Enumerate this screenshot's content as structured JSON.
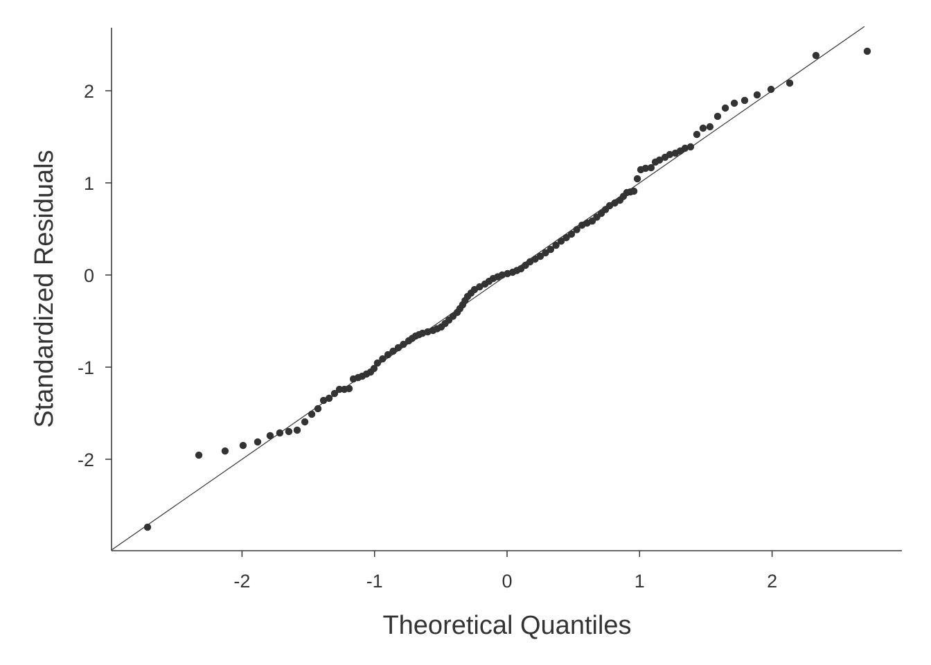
{
  "chart_data": {
    "type": "scatter",
    "title": "",
    "xlabel": "Theoretical Quantiles",
    "ylabel": "Standardized Residuals",
    "xlim": [
      -2.985,
      2.98
    ],
    "ylim": [
      -2.99,
      2.68
    ],
    "xticks": [
      -2,
      -1,
      0,
      1,
      2
    ],
    "yticks": [
      -2,
      -1,
      0,
      1,
      2
    ],
    "xtick_labels": [
      "-2",
      "-1",
      "0",
      "1",
      "2"
    ],
    "ytick_labels": [
      "-2",
      "-1",
      "0",
      "1",
      "2"
    ],
    "grid": false,
    "reference_line": {
      "slope": 1,
      "intercept": 0
    },
    "point_color": "#333333",
    "line_color": "#333333",
    "points": [
      [
        -2.713,
        -2.737
      ],
      [
        -2.326,
        -1.955
      ],
      [
        -2.128,
        -1.91
      ],
      [
        -1.992,
        -1.85
      ],
      [
        -1.882,
        -1.812
      ],
      [
        -1.788,
        -1.744
      ],
      [
        -1.715,
        -1.714
      ],
      [
        -1.647,
        -1.699
      ],
      [
        -1.584,
        -1.684
      ],
      [
        -1.526,
        -1.594
      ],
      [
        -1.474,
        -1.511
      ],
      [
        -1.427,
        -1.451
      ],
      [
        -1.385,
        -1.361
      ],
      [
        -1.343,
        -1.338
      ],
      [
        -1.302,
        -1.286
      ],
      [
        -1.265,
        -1.241
      ],
      [
        -1.228,
        -1.241
      ],
      [
        -1.192,
        -1.233
      ],
      [
        -1.16,
        -1.128
      ],
      [
        -1.124,
        -1.113
      ],
      [
        -1.093,
        -1.098
      ],
      [
        -1.061,
        -1.075
      ],
      [
        -1.03,
        -1.053
      ],
      [
        -1.004,
        -1.015
      ],
      [
        -0.978,
        -0.955
      ],
      [
        -0.939,
        -0.91
      ],
      [
        -0.899,
        -0.865
      ],
      [
        -0.86,
        -0.827
      ],
      [
        -0.821,
        -0.789
      ],
      [
        -0.782,
        -0.752
      ],
      [
        -0.742,
        -0.714
      ],
      [
        -0.716,
        -0.688
      ],
      [
        -0.69,
        -0.662
      ],
      [
        -0.664,
        -0.647
      ],
      [
        -0.638,
        -0.632
      ],
      [
        -0.599,
        -0.617
      ],
      [
        -0.559,
        -0.602
      ],
      [
        -0.528,
        -0.583
      ],
      [
        -0.497,
        -0.564
      ],
      [
        -0.468,
        -0.527
      ],
      [
        -0.439,
        -0.489
      ],
      [
        -0.408,
        -0.448
      ],
      [
        -0.376,
        -0.406
      ],
      [
        -0.356,
        -0.365
      ],
      [
        -0.335,
        -0.323
      ],
      [
        -0.317,
        -0.278
      ],
      [
        -0.298,
        -0.233
      ],
      [
        -0.272,
        -0.196
      ],
      [
        -0.246,
        -0.158
      ],
      [
        -0.207,
        -0.128
      ],
      [
        -0.167,
        -0.098
      ],
      [
        -0.136,
        -0.068
      ],
      [
        -0.105,
        -0.038
      ],
      [
        -0.071,
        -0.019
      ],
      [
        -0.037,
        0.0
      ],
      [
        0.003,
        0.015
      ],
      [
        0.042,
        0.03
      ],
      [
        0.074,
        0.049
      ],
      [
        0.105,
        0.068
      ],
      [
        0.139,
        0.106
      ],
      [
        0.173,
        0.143
      ],
      [
        0.212,
        0.173
      ],
      [
        0.251,
        0.203
      ],
      [
        0.29,
        0.241
      ],
      [
        0.329,
        0.278
      ],
      [
        0.369,
        0.323
      ],
      [
        0.408,
        0.368
      ],
      [
        0.447,
        0.406
      ],
      [
        0.486,
        0.444
      ],
      [
        0.526,
        0.493
      ],
      [
        0.565,
        0.541
      ],
      [
        0.604,
        0.564
      ],
      [
        0.643,
        0.586
      ],
      [
        0.677,
        0.628
      ],
      [
        0.711,
        0.669
      ],
      [
        0.743,
        0.711
      ],
      [
        0.774,
        0.752
      ],
      [
        0.813,
        0.782
      ],
      [
        0.852,
        0.812
      ],
      [
        0.878,
        0.854
      ],
      [
        0.904,
        0.895
      ],
      [
        0.93,
        0.902
      ],
      [
        0.957,
        0.91
      ],
      [
        0.983,
        1.045
      ],
      [
        1.009,
        1.143
      ],
      [
        1.045,
        1.158
      ],
      [
        1.087,
        1.165
      ],
      [
        1.119,
        1.226
      ],
      [
        1.15,
        1.248
      ],
      [
        1.192,
        1.278
      ],
      [
        1.228,
        1.308
      ],
      [
        1.27,
        1.323
      ],
      [
        1.307,
        1.346
      ],
      [
        1.343,
        1.376
      ],
      [
        1.385,
        1.391
      ],
      [
        1.432,
        1.526
      ],
      [
        1.479,
        1.594
      ],
      [
        1.531,
        1.609
      ],
      [
        1.589,
        1.722
      ],
      [
        1.647,
        1.812
      ],
      [
        1.715,
        1.865
      ],
      [
        1.793,
        1.895
      ],
      [
        1.887,
        1.955
      ],
      [
        1.992,
        2.015
      ],
      [
        2.133,
        2.083
      ],
      [
        2.331,
        2.383
      ],
      [
        2.718,
        2.429
      ]
    ]
  }
}
